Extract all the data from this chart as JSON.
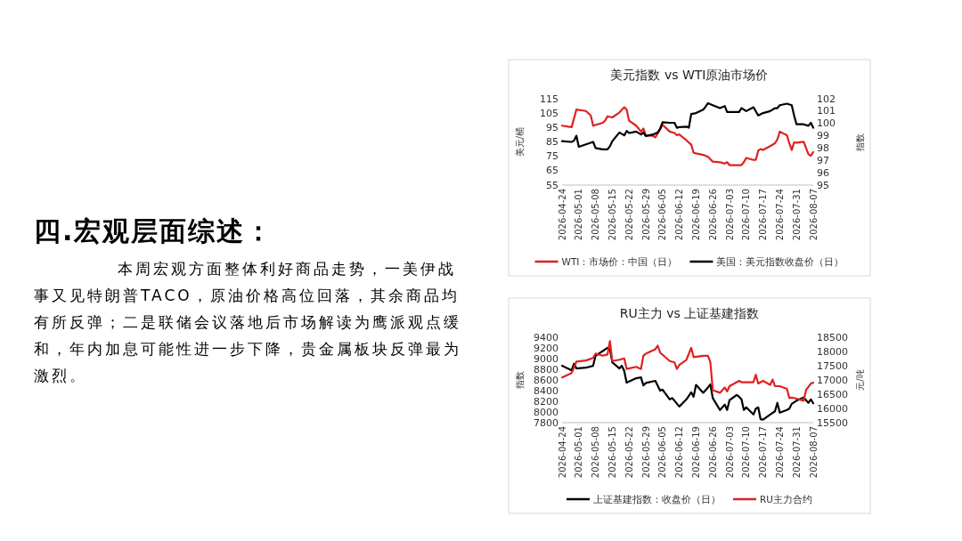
{
  "chart_data": [
    {
      "type": "other",
      "title": "四.宏观层面综述：",
      "annotations": [
        "本周宏观方面整体利好商品走势，一美伊战事又见特朗普TACO，原油价格高位回落，其余商品均有所反弹；二是联储会议落地后市场解读为鹰派观点缓和，年内加息可能性进一步下降，贵金属板块反弹最为激烈。"
      ]
    },
    {
      "type": "line",
      "title": "美元指数 vs WTI原油市场价",
      "ylabel": "美元/桶",
      "y2label": "指数",
      "legend": "bottom",
      "xlim": [
        "2026-04-24",
        "2026-08-07"
      ],
      "xticks": [
        "2026-04-24",
        "2026-05-01",
        "2026-05-08",
        "2026-05-15",
        "2026-05-22",
        "2026-05-29",
        "2026-06-05",
        "2026-06-12",
        "2026-06-19",
        "2026-06-26",
        "2026-07-03",
        "2026-07-10",
        "2026-07-17",
        "2026-07-24",
        "2026-07-31",
        "2026-08-07"
      ],
      "ylim": [
        55,
        115
      ],
      "yticks": [
        55,
        65,
        75,
        85,
        95,
        105,
        115
      ],
      "y2lim": [
        95,
        102
      ],
      "y2ticks": [
        95,
        96,
        97,
        98,
        99,
        100,
        101,
        102
      ],
      "series": [
        {
          "name": "WTI：市场价：中国（日）",
          "color": "#e02020",
          "axis": "y",
          "x": [
            "2026-04-24",
            "2026-04-28",
            "2026-04-30",
            "2026-05-04",
            "2026-05-06",
            "2026-05-07",
            "2026-05-11",
            "2026-05-12",
            "2026-05-13",
            "2026-05-15",
            "2026-05-18",
            "2026-05-20",
            "2026-05-21",
            "2026-05-22",
            "2026-05-25",
            "2026-05-27",
            "2026-05-28",
            "2026-05-29",
            "2026-06-01",
            "2026-06-02",
            "2026-06-04",
            "2026-06-05",
            "2026-06-08",
            "2026-06-10",
            "2026-06-11",
            "2026-06-12",
            "2026-06-15",
            "2026-06-17",
            "2026-06-18",
            "2026-06-19",
            "2026-06-22",
            "2026-06-24",
            "2026-06-26",
            "2026-06-29",
            "2026-07-01",
            "2026-07-02",
            "2026-07-03",
            "2026-07-06",
            "2026-07-08",
            "2026-07-09",
            "2026-07-10",
            "2026-07-13",
            "2026-07-14",
            "2026-07-15",
            "2026-07-16",
            "2026-07-17",
            "2026-07-20",
            "2026-07-22",
            "2026-07-23",
            "2026-07-24",
            "2026-07-27",
            "2026-07-28",
            "2026-07-29",
            "2026-07-30",
            "2026-07-31",
            "2026-08-03",
            "2026-08-05",
            "2026-08-06",
            "2026-08-07"
          ],
          "values": [
            96.3,
            95.3,
            107.5,
            106.5,
            103.4,
            96.3,
            98.3,
            99.8,
            102.8,
            102,
            105.5,
            109.1,
            107.5,
            99.8,
            96.3,
            92.2,
            94.3,
            89.6,
            89.2,
            88.2,
            93.7,
            96.9,
            92.2,
            91.2,
            89.6,
            90.2,
            86.1,
            83.1,
            77.4,
            77,
            76,
            74.6,
            71.3,
            70.9,
            69.9,
            70.9,
            68.9,
            68.9,
            68.9,
            70.9,
            73.9,
            72.5,
            72.5,
            79,
            80,
            79.4,
            82.1,
            84.1,
            86.7,
            92.2,
            89.6,
            84.1,
            79.4,
            84.7,
            84.5,
            85.1,
            76.4,
            75.4,
            78
          ]
        },
        {
          "name": "美国：美元指数收盘价（日）",
          "color": "#000000",
          "axis": "y2",
          "x": [
            "2026-04-24",
            "2026-04-28",
            "2026-04-29",
            "2026-04-30",
            "2026-05-01",
            "2026-05-04",
            "2026-05-07",
            "2026-05-08",
            "2026-05-11",
            "2026-05-13",
            "2026-05-14",
            "2026-05-15",
            "2026-05-18",
            "2026-05-20",
            "2026-05-21",
            "2026-05-22",
            "2026-05-25",
            "2026-05-27",
            "2026-05-28",
            "2026-05-29",
            "2026-06-01",
            "2026-06-03",
            "2026-06-04",
            "2026-06-05",
            "2026-06-08",
            "2026-06-10",
            "2026-06-11",
            "2026-06-12",
            "2026-06-15",
            "2026-06-16",
            "2026-06-17",
            "2026-06-19",
            "2026-06-22",
            "2026-06-23",
            "2026-06-24",
            "2026-06-26",
            "2026-06-29",
            "2026-07-01",
            "2026-07-02",
            "2026-07-03",
            "2026-07-07",
            "2026-07-08",
            "2026-07-10",
            "2026-07-13",
            "2026-07-15",
            "2026-07-17",
            "2026-07-20",
            "2026-07-22",
            "2026-07-23",
            "2026-07-24",
            "2026-07-27",
            "2026-07-29",
            "2026-07-30",
            "2026-07-31",
            "2026-08-03",
            "2026-08-05",
            "2026-08-06",
            "2026-08-07"
          ],
          "values": [
            98.56,
            98.5,
            98.6,
            99,
            98.1,
            98.3,
            98.5,
            98,
            97.9,
            97.9,
            98.15,
            98.56,
            99.27,
            99.03,
            99.39,
            99.22,
            99.34,
            99.1,
            99.27,
            98.98,
            99.1,
            99.27,
            99.58,
            100.1,
            100.05,
            100.05,
            99.65,
            99.7,
            99.74,
            99.65,
            100.76,
            100.84,
            101.12,
            101.36,
            101.64,
            101.48,
            101.24,
            101.41,
            100.93,
            100.93,
            100.93,
            101.24,
            101,
            101.31,
            100.65,
            100.84,
            101,
            101.24,
            101.24,
            101.48,
            101.6,
            101.48,
            100.65,
            99.93,
            99.93,
            99.81,
            100.05,
            99.65
          ]
        }
      ]
    },
    {
      "type": "line",
      "title": "RU主力 vs 上证基建指数",
      "ylabel": "指数",
      "y2label": "元/吨",
      "legend": "bottom",
      "xlim": [
        "2026-04-24",
        "2026-08-07"
      ],
      "xticks": [
        "2026-04-24",
        "2026-05-01",
        "2026-05-08",
        "2026-05-15",
        "2026-05-22",
        "2026-05-29",
        "2026-06-05",
        "2026-06-12",
        "2026-06-19",
        "2026-06-26",
        "2026-07-03",
        "2026-07-10",
        "2026-07-17",
        "2026-07-24",
        "2026-07-31",
        "2026-08-07"
      ],
      "ylim": [
        7800,
        9400
      ],
      "yticks": [
        7800,
        8000,
        8200,
        8400,
        8600,
        8800,
        9000,
        9200,
        9400
      ],
      "y2lim": [
        15500,
        18500
      ],
      "y2ticks": [
        15500,
        16000,
        16500,
        17000,
        17500,
        18000,
        18500
      ],
      "series": [
        {
          "name": "上证基建指数：收盘价（日）",
          "color": "#000000",
          "axis": "y",
          "x": [
            "2026-04-24",
            "2026-04-28",
            "2026-04-29",
            "2026-04-30",
            "2026-05-04",
            "2026-05-07",
            "2026-05-08",
            "2026-05-11",
            "2026-05-13",
            "2026-05-14",
            "2026-05-15",
            "2026-05-18",
            "2026-05-19",
            "2026-05-20",
            "2026-05-21",
            "2026-05-25",
            "2026-05-27",
            "2026-05-28",
            "2026-05-29",
            "2026-06-02",
            "2026-06-04",
            "2026-06-05",
            "2026-06-08",
            "2026-06-09",
            "2026-06-10",
            "2026-06-12",
            "2026-06-15",
            "2026-06-17",
            "2026-06-18",
            "2026-06-19",
            "2026-06-22",
            "2026-06-24",
            "2026-06-25",
            "2026-06-26",
            "2026-06-29",
            "2026-07-01",
            "2026-07-02",
            "2026-07-03",
            "2026-07-06",
            "2026-07-07",
            "2026-07-08",
            "2026-07-09",
            "2026-07-10",
            "2026-07-13",
            "2026-07-14",
            "2026-07-15",
            "2026-07-16",
            "2026-07-17",
            "2026-07-20",
            "2026-07-22",
            "2026-07-23",
            "2026-07-24",
            "2026-07-27",
            "2026-07-28",
            "2026-07-29",
            "2026-07-31",
            "2026-08-03",
            "2026-08-05",
            "2026-08-06",
            "2026-08-07"
          ],
          "values": [
            8865,
            8781,
            8905,
            8815,
            8830,
            8865,
            9053,
            9142,
            9202,
            9177,
            8929,
            8815,
            8865,
            8766,
            8548,
            8632,
            8647,
            8498,
            8543,
            8583,
            8399,
            8419,
            8236,
            8261,
            8211,
            8102,
            8236,
            8370,
            8285,
            8508,
            8360,
            8459,
            8518,
            8261,
            8038,
            8137,
            8038,
            8221,
            8320,
            8285,
            8236,
            8038,
            8087,
            7953,
            8062,
            8087,
            7864,
            7855,
            7953,
            8013,
            8171,
            7988,
            8038,
            8062,
            8152,
            8211,
            8271,
            8171,
            8236,
            8162
          ]
        },
        {
          "name": "RU主力合约",
          "color": "#e02020",
          "axis": "y2",
          "x": [
            "2026-04-24",
            "2026-04-28",
            "2026-04-29",
            "2026-04-30",
            "2026-05-04",
            "2026-05-07",
            "2026-05-08",
            "2026-05-11",
            "2026-05-13",
            "2026-05-14",
            "2026-05-15",
            "2026-05-18",
            "2026-05-20",
            "2026-05-21",
            "2026-05-25",
            "2026-05-27",
            "2026-05-28",
            "2026-05-29",
            "2026-06-02",
            "2026-06-03",
            "2026-06-04",
            "2026-06-08",
            "2026-06-10",
            "2026-06-11",
            "2026-06-12",
            "2026-06-15",
            "2026-06-17",
            "2026-06-18",
            "2026-06-22",
            "2026-06-24",
            "2026-06-25",
            "2026-06-26",
            "2026-06-29",
            "2026-07-01",
            "2026-07-02",
            "2026-07-03",
            "2026-07-07",
            "2026-07-08",
            "2026-07-13",
            "2026-07-14",
            "2026-07-15",
            "2026-07-17",
            "2026-07-20",
            "2026-07-21",
            "2026-07-22",
            "2026-07-24",
            "2026-07-27",
            "2026-07-28",
            "2026-07-29",
            "2026-07-31",
            "2026-08-03",
            "2026-08-04",
            "2026-08-06",
            "2026-08-07"
          ],
          "values": [
            17088,
            17246,
            17432,
            17646,
            17683,
            17776,
            17924,
            17850,
            17896,
            18361,
            17664,
            17710,
            17757,
            17385,
            17460,
            17385,
            17850,
            17924,
            18082,
            18203,
            17961,
            17664,
            17618,
            17385,
            17525,
            17710,
            18128,
            17803,
            17850,
            17850,
            17618,
            16642,
            16550,
            16735,
            16596,
            16782,
            16967,
            16921,
            16921,
            17181,
            16874,
            16967,
            16828,
            17014,
            16782,
            16782,
            16689,
            16364,
            16382,
            16345,
            16271,
            16642,
            16874,
            16902
          ]
        }
      ]
    }
  ]
}
